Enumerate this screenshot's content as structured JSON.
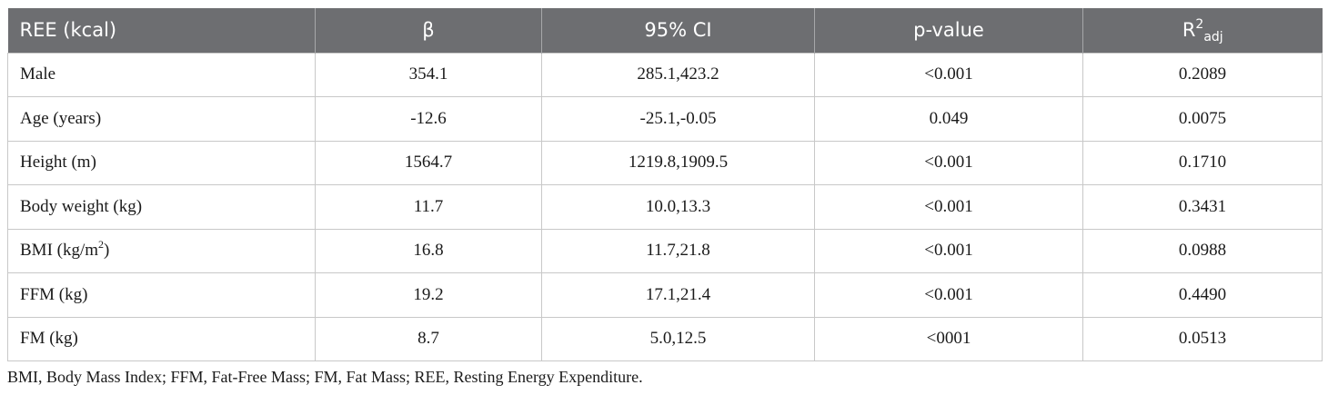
{
  "table": {
    "headers": {
      "col1": "REE (kcal)",
      "col2": "β",
      "col3": "95% CI",
      "col4": "p-value",
      "col5_base": "R",
      "col5_sup": "2",
      "col5_sub": "adj"
    },
    "rows": [
      {
        "label": "Male",
        "label_sup": "",
        "label_suffix": "",
        "beta": "354.1",
        "ci": "285.1,423.2",
        "p": "<0.001",
        "r2": "0.2089"
      },
      {
        "label": "Age (years)",
        "label_sup": "",
        "label_suffix": "",
        "beta": "-12.6",
        "ci": "-25.1,-0.05",
        "p": "0.049",
        "r2": "0.0075"
      },
      {
        "label": "Height (m)",
        "label_sup": "",
        "label_suffix": "",
        "beta": "1564.7",
        "ci": "1219.8,1909.5",
        "p": "<0.001",
        "r2": "0.1710"
      },
      {
        "label": "Body weight (kg)",
        "label_sup": "",
        "label_suffix": "",
        "beta": "11.7",
        "ci": "10.0,13.3",
        "p": "<0.001",
        "r2": "0.3431"
      },
      {
        "label": "BMI (kg/m",
        "label_sup": "2",
        "label_suffix": ")",
        "beta": "16.8",
        "ci": "11.7,21.8",
        "p": "<0.001",
        "r2": "0.0988"
      },
      {
        "label": "FFM (kg)",
        "label_sup": "",
        "label_suffix": "",
        "beta": "19.2",
        "ci": "17.1,21.4",
        "p": "<0.001",
        "r2": "0.4490"
      },
      {
        "label": "FM (kg)",
        "label_sup": "",
        "label_suffix": "",
        "beta": "8.7",
        "ci": "5.0,12.5",
        "p": "<0001",
        "r2": "0.0513"
      }
    ]
  },
  "footnote": "BMI, Body Mass Index; FFM, Fat-Free Mass; FM, Fat Mass; REE, Resting Energy Expenditure.",
  "colors": {
    "header_bg": "#6d6e71",
    "header_text": "#ffffff",
    "border": "#c8c8c8"
  }
}
